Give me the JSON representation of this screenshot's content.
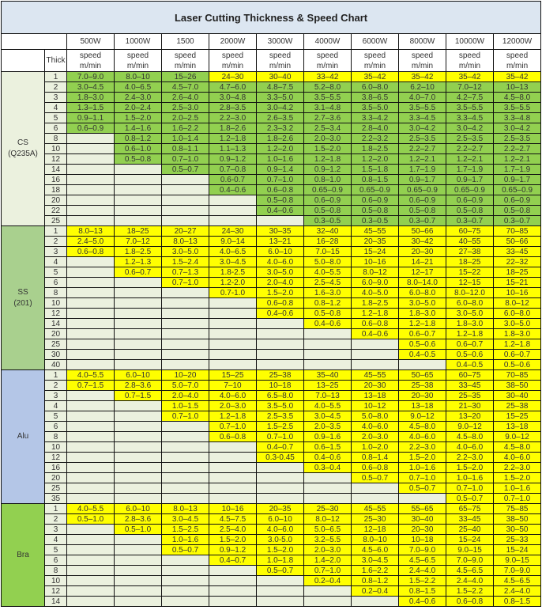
{
  "title": "Laser Cutting Thickness & Speed Chart",
  "powers": [
    "500W",
    "1000W",
    "1500",
    "2000W",
    "3000W",
    "4000W",
    "6000W",
    "8000W",
    "10000W",
    "12000W"
  ],
  "thick_label": "Thick",
  "speed_label": "speed",
  "unit_label": "m/min",
  "colors": {
    "green": "#92d050",
    "yellow": "#ffff00",
    "blank": "#ebf1de"
  },
  "materials": [
    {
      "name": "CS",
      "sub": "(Q235A)",
      "color": "#ebf1de",
      "cell_color": "#92d050",
      "rows": [
        {
          "t": "1",
          "v": [
            "7.0–9.0",
            "8.0–10",
            "15–26",
            "24–30",
            "30–40",
            "33–42",
            "35–42",
            "35–42",
            "35–42",
            "35–42"
          ],
          "cell_colors": [
            "#92d050",
            "#92d050",
            "#92d050",
            "#ffff00",
            "#ffff00",
            "#ffff00",
            "#ffff00",
            "#ffff00",
            "#ffff00",
            "#ffff00"
          ]
        },
        {
          "t": "2",
          "v": [
            "3.0–4.5",
            "4.0–6.5",
            "4.5–7.0",
            "4.7–6.0",
            "4.8–7.5",
            "5.2–8.0",
            "6.0–8.0",
            "6.2–10",
            "7.0–12",
            "10–13"
          ]
        },
        {
          "t": "3",
          "v": [
            "1.8–3.0",
            "2.4–3.0",
            "2.6–4.0",
            "3.0–4.8",
            "3.3–5.0",
            "3.5–5.5",
            "3.8–6.5",
            "4.0–7.0",
            "4.2–7.5",
            "4.5–8.0"
          ]
        },
        {
          "t": "4",
          "v": [
            "1.3–1.5",
            "2.0–2.4",
            "2.5–3.0",
            "2.8–3.5",
            "3.0–4.2",
            "3.1–4.8",
            "3.5–5.0",
            "3.5–5.5",
            "3.5–5.5",
            "3.5–5.5"
          ]
        },
        {
          "t": "5",
          "v": [
            "0.9–1.1",
            "1.5–2.0",
            "2.0–2.5",
            "2.2–3.0",
            "2.6–3.5",
            "2.7–3.6",
            "3.3–4.2",
            "3.3–4.5",
            "3.3–4.5",
            "3.3–4.8"
          ]
        },
        {
          "t": "6",
          "v": [
            "0.6–0.9",
            "1.4–1.6",
            "1.6–2.2",
            "1.8–2.6",
            "2.3–3.2",
            "2.5–3.4",
            "2.8–4.0",
            "3.0–4.2",
            "3.0–4.2",
            "3.0–4.2"
          ]
        },
        {
          "t": "8",
          "v": [
            "",
            "0.8–1.2",
            "1.0–1.4",
            "1.2–1.8",
            "1.8–2.6",
            "2.0–3.0",
            "2.2–3.2",
            "2.5–3.5",
            "2.5–3.5",
            "2.5–3.5"
          ]
        },
        {
          "t": "10",
          "v": [
            "",
            "0.6–1.0",
            "0.8–1.1",
            "1.1–1.3",
            "1.2–2.0",
            "1.5–2.0",
            "1.8–2.5",
            "2.2–2.7",
            "2.2–2.7",
            "2.2–2.7"
          ]
        },
        {
          "t": "12",
          "v": [
            "",
            "0.5–0.8",
            "0.7–1.0",
            "0.9–1.2",
            "1.0–1.6",
            "1.2–1.8",
            "1.2–2.0",
            "1.2–2.1",
            "1.2–2.1",
            "1.2–2.1"
          ]
        },
        {
          "t": "14",
          "v": [
            "",
            "",
            "0.5–0.7",
            "0.7–0.8",
            "0.9–1.4",
            "0.9–1.2",
            "1.5–1.8",
            "1.7–1.9",
            "1.7–1.9",
            "1.7–1.9"
          ]
        },
        {
          "t": "16",
          "v": [
            "",
            "",
            "",
            "0.6-0.7",
            "0.7–1.0",
            "0.8–1.0",
            "0.8–1.5",
            "0.9–1.7",
            "0.9–1.7",
            "0.9–1.7"
          ]
        },
        {
          "t": "18",
          "v": [
            "",
            "",
            "",
            "0.4–0.6",
            "0.6–0.8",
            "0.65–0.9",
            "0.65–0.9",
            "0.65–0.9",
            "0.65–0.9",
            "0.65–0.9"
          ]
        },
        {
          "t": "20",
          "v": [
            "",
            "",
            "",
            "",
            "0.5–0.8",
            "0.6–0.9",
            "0.6–0.9",
            "0.6–0.9",
            "0.6–0.9",
            "0.6–0.9"
          ]
        },
        {
          "t": "22",
          "v": [
            "",
            "",
            "",
            "",
            "0.4–0.6",
            "0.5–0.8",
            "0.5–0.8",
            "0.5–0.8",
            "0.5–0.8",
            "0.5–0.8"
          ]
        },
        {
          "t": "25",
          "v": [
            "",
            "",
            "",
            "",
            "",
            "0.3–0.5",
            "0.3–0.5",
            "0.3–0.7",
            "0.3–0.7",
            "0.3–0.7"
          ]
        }
      ]
    },
    {
      "name": "SS",
      "sub": "(201)",
      "color": "#a9d08e",
      "cell_color": "#ffff00",
      "rows": [
        {
          "t": "1",
          "v": [
            "8.0–13",
            "18–25",
            "20–27",
            "24–30",
            "30–35",
            "32–40",
            "45–55",
            "50–66",
            "60–75",
            "70–85"
          ]
        },
        {
          "t": "2",
          "v": [
            "2.4–5.0",
            "7.0–12",
            "8.0–13",
            "9.0–14",
            "13–21",
            "16–28",
            "20–35",
            "30–42",
            "40–55",
            "50–66"
          ]
        },
        {
          "t": "3",
          "v": [
            "0.6–0.8",
            "1.8–2.5",
            "3.0–5.0",
            "4.0–6.5",
            "6.0–10",
            "7.0–15",
            "15–24",
            "20–30",
            "27–38",
            "33–45"
          ]
        },
        {
          "t": "4",
          "v": [
            "",
            "1.2–1.3",
            "1.5–2.4",
            "3.0–4.5",
            "4.0–6.0",
            "5.0–8.0",
            "10–16",
            "14–21",
            "18–25",
            "22–32"
          ]
        },
        {
          "t": "5",
          "v": [
            "",
            "0.6–0.7",
            "0.7–1.3",
            "1.8-2.5",
            "3.0–5.0",
            "4.0–5.5",
            "8.0–12",
            "12–17",
            "15–22",
            "18–25"
          ]
        },
        {
          "t": "6",
          "v": [
            "",
            "",
            "0.7–1.0",
            "1.2-2.0",
            "2.0–4.0",
            "2.5–4.5",
            "6.0–9.0",
            "8.0–14.0",
            "12–15",
            "15–21"
          ]
        },
        {
          "t": "8",
          "v": [
            "",
            "",
            "",
            "0.7-1.0",
            "1.5–2.0",
            "1.6–3.0",
            "4.0–5.0",
            "6.0–8.0",
            "8.0–12.0",
            "10–16"
          ]
        },
        {
          "t": "10",
          "v": [
            "",
            "",
            "",
            "",
            "0.6–0.8",
            "0.8–1.2",
            "1.8–2.5",
            "3.0–5.0",
            "6.0–8.0",
            "8.0–12"
          ]
        },
        {
          "t": "12",
          "v": [
            "",
            "",
            "",
            "",
            "0.4–0.6",
            "0.5–0.8",
            "1.2–1.8",
            "1.8–3.0",
            "3.0–5.0",
            "6.0–8.0"
          ]
        },
        {
          "t": "14",
          "v": [
            "",
            "",
            "",
            "",
            "",
            "0.4–0.6",
            "0.6–0.8",
            "1.2–1.8",
            "1.8–3.0",
            "3.0–5.0"
          ]
        },
        {
          "t": "20",
          "v": [
            "",
            "",
            "",
            "",
            "",
            "",
            "0.4–0.6",
            "0.6–0.7",
            "1.2–1.8",
            "1.8–3.0"
          ]
        },
        {
          "t": "25",
          "v": [
            "",
            "",
            "",
            "",
            "",
            "",
            "",
            "0.5–0.6",
            "0.6–0.7",
            "1.2–1.8"
          ]
        },
        {
          "t": "30",
          "v": [
            "",
            "",
            "",
            "",
            "",
            "",
            "",
            "0.4–0.5",
            "0.5–0.6",
            "0.6–0.7"
          ]
        },
        {
          "t": "40",
          "v": [
            "",
            "",
            "",
            "",
            "",
            "",
            "",
            "",
            "0.4–0.5",
            "0.5–0.6"
          ]
        }
      ]
    },
    {
      "name": "Alu",
      "sub": "",
      "color": "#b4c6e7",
      "cell_color": "#ffff00",
      "rows": [
        {
          "t": "1",
          "v": [
            "4.0–5.5",
            "6.0–10",
            "10–20",
            "15–25",
            "25–38",
            "35–40",
            "45–55",
            "50–65",
            "60–75",
            "70–85"
          ]
        },
        {
          "t": "2",
          "v": [
            "0.7–1.5",
            "2.8–3.6",
            "5.0–7.0",
            "7–10",
            "10–18",
            "13–25",
            "20–30",
            "25–38",
            "33–45",
            "38–50"
          ]
        },
        {
          "t": "3",
          "v": [
            "",
            "0.7–1.5",
            "2.0–4.0",
            "4.0–6.0",
            "6.5–8.0",
            "7.0–13",
            "13–18",
            "20–30",
            "25–35",
            "30–40"
          ]
        },
        {
          "t": "4",
          "v": [
            "",
            "",
            "1.0–1.5",
            "2.0–3.0",
            "3.5–5.0",
            "4.0–5.5",
            "10–12",
            "13–18",
            "21–30",
            "25–38"
          ]
        },
        {
          "t": "5",
          "v": [
            "",
            "",
            "0.7–1.0",
            "1.2–1.8",
            "2.5–3.5",
            "3.0–4.5",
            "5.0–8.0",
            "9.0–12",
            "13–20",
            "15–25"
          ]
        },
        {
          "t": "6",
          "v": [
            "",
            "",
            "",
            "0.7–1.0",
            "1.5–2.5",
            "2.0–3.5",
            "4.0–6.0",
            "4.5–8.0",
            "9.0–12",
            "13–18"
          ]
        },
        {
          "t": "8",
          "v": [
            "",
            "",
            "",
            "0.6–0.8",
            "0.7–1.0",
            "0.9–1.6",
            "2.0–3.0",
            "4.0–6.0",
            "4.5–8.0",
            "9.0–12"
          ]
        },
        {
          "t": "10",
          "v": [
            "",
            "",
            "",
            "",
            "0.4–0.7",
            "0.6–1.5",
            "1.0–2.0",
            "2.2–3.0",
            "4.0–6.0",
            "4.5–8.0"
          ]
        },
        {
          "t": "12",
          "v": [
            "",
            "",
            "",
            "",
            "0.3-0.45",
            "0.4–0.6",
            "0.8–1.4",
            "1.5–2.0",
            "2.2–3.0",
            "4.0–6.0"
          ]
        },
        {
          "t": "16",
          "v": [
            "",
            "",
            "",
            "",
            "",
            "0.3–0.4",
            "0.6–0.8",
            "1.0–1.6",
            "1.5–2.0",
            "2.2–3.0"
          ]
        },
        {
          "t": "20",
          "v": [
            "",
            "",
            "",
            "",
            "",
            "",
            "0.5–0.7",
            "0.7–1.0",
            "1.0–1.6",
            "1.5–2.0"
          ]
        },
        {
          "t": "25",
          "v": [
            "",
            "",
            "",
            "",
            "",
            "",
            "",
            "0.5–0.7",
            "0.7–1.0",
            "1.0–1.6"
          ]
        },
        {
          "t": "35",
          "v": [
            "",
            "",
            "",
            "",
            "",
            "",
            "",
            "",
            "0.5–0.7",
            "0.7–1.0"
          ]
        }
      ]
    },
    {
      "name": "Bra",
      "sub": "",
      "color": "#92d050",
      "cell_color": "#ffff00",
      "rows": [
        {
          "t": "1",
          "v": [
            "4.0–5.5",
            "6.0–10",
            "8.0–13",
            "10–16",
            "20–35",
            "25–30",
            "45–55",
            "55–65",
            "65–75",
            "75–85"
          ]
        },
        {
          "t": "2",
          "v": [
            "0.5–1.0",
            "2.8–3.6",
            "3.0–4.5",
            "4.5–7.5",
            "6.0–10",
            "8.0–12",
            "25–30",
            "30–40",
            "33–45",
            "38–50"
          ]
        },
        {
          "t": "3",
          "v": [
            "",
            "0.5–1.0",
            "1.5–2.5",
            "2.5–4.0",
            "4.0–6.0",
            "5.0–6.5",
            "12–18",
            "20–30",
            "25–40",
            "30–50"
          ]
        },
        {
          "t": "4",
          "v": [
            "",
            "",
            "1.0–1.6",
            "1.5–2.0",
            "3.0-5.0",
            "3.2–5.5",
            "8.0–10",
            "10–18",
            "15–24",
            "25–33"
          ]
        },
        {
          "t": "5",
          "v": [
            "",
            "",
            "0.5–0.7",
            "0.9–1.2",
            "1.5–2.0",
            "2.0–3.0",
            "4.5–6.0",
            "7.0–9.0",
            "9.0–15",
            "15–24"
          ]
        },
        {
          "t": "6",
          "v": [
            "",
            "",
            "",
            "0.4–0.7",
            "1.0–1.8",
            "1.4–2.0",
            "3.0–4.5",
            "4.5–6.5",
            "7.0–9.0",
            "9.0–15"
          ]
        },
        {
          "t": "8",
          "v": [
            "",
            "",
            "",
            "",
            "0.5–0.7",
            "0.7–1.0",
            "1.6–2.2",
            "2.4–4.0",
            "4.5–6.5",
            "7.0–9.0"
          ]
        },
        {
          "t": "10",
          "v": [
            "",
            "",
            "",
            "",
            "",
            "0.2–0.4",
            "0.8–1.2",
            "1.5–2.2",
            "2.4–4.0",
            "4.5–6.5"
          ]
        },
        {
          "t": "12",
          "v": [
            "",
            "",
            "",
            "",
            "",
            "",
            "0.2–0.4",
            "0.8–1.5",
            "1.5–2.2",
            "2.4–4.0"
          ]
        },
        {
          "t": "14",
          "v": [
            "",
            "",
            "",
            "",
            "",
            "",
            "",
            "0.4–0.6",
            "0.6–0.8",
            "0.8–1.5"
          ]
        }
      ]
    }
  ]
}
